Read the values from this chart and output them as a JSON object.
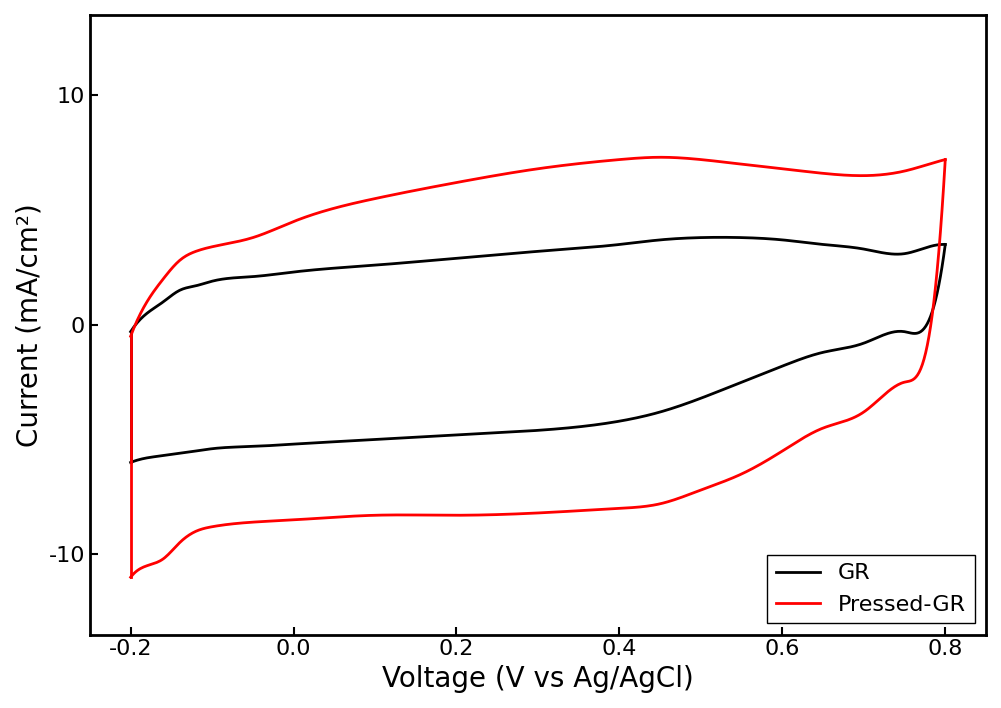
{
  "xlabel": "Voltage (V vs Ag/AgCl)",
  "ylabel": "Current (mA/cm²)",
  "xlim": [
    -0.25,
    0.85
  ],
  "ylim": [
    -13.5,
    13.5
  ],
  "xticks": [
    -0.2,
    0.0,
    0.2,
    0.4,
    0.6,
    0.8
  ],
  "yticks": [
    -10,
    0,
    10
  ],
  "legend_labels": [
    "GR",
    "Pressed-GR"
  ],
  "legend_colors": [
    "black",
    "red"
  ],
  "gr_upper_x": [
    -0.2,
    -0.18,
    -0.16,
    -0.14,
    -0.12,
    -0.1,
    -0.05,
    0.0,
    0.1,
    0.2,
    0.3,
    0.4,
    0.45,
    0.5,
    0.55,
    0.6,
    0.65,
    0.7,
    0.75,
    0.78,
    0.8
  ],
  "gr_upper_y": [
    -0.3,
    0.5,
    1.0,
    1.5,
    1.7,
    1.9,
    2.1,
    2.3,
    2.6,
    2.9,
    3.2,
    3.5,
    3.7,
    3.8,
    3.8,
    3.7,
    3.5,
    3.3,
    3.1,
    3.4,
    3.5
  ],
  "gr_lower_x": [
    -0.2,
    -0.18,
    -0.16,
    -0.14,
    -0.12,
    -0.1,
    -0.05,
    0.0,
    0.1,
    0.2,
    0.3,
    0.4,
    0.45,
    0.5,
    0.55,
    0.6,
    0.65,
    0.7,
    0.75,
    0.78,
    0.8
  ],
  "gr_lower_y": [
    -6.0,
    -5.8,
    -5.7,
    -5.6,
    -5.5,
    -5.4,
    -5.3,
    -5.2,
    -5.0,
    -4.8,
    -4.6,
    -4.2,
    -3.8,
    -3.2,
    -2.5,
    -1.8,
    -1.2,
    -0.8,
    -0.3,
    0.2,
    3.5
  ],
  "pgr_upper_x": [
    -0.2,
    -0.18,
    -0.16,
    -0.14,
    -0.12,
    -0.1,
    -0.05,
    0.0,
    0.1,
    0.2,
    0.3,
    0.4,
    0.45,
    0.5,
    0.55,
    0.6,
    0.65,
    0.7,
    0.75,
    0.78,
    0.8
  ],
  "pgr_upper_y": [
    -0.5,
    1.0,
    2.0,
    2.8,
    3.2,
    3.4,
    3.8,
    4.5,
    5.5,
    6.2,
    6.8,
    7.2,
    7.3,
    7.2,
    7.0,
    6.8,
    6.6,
    6.5,
    6.7,
    7.0,
    7.2
  ],
  "pgr_lower_x": [
    -0.2,
    -0.18,
    -0.16,
    -0.14,
    -0.12,
    -0.1,
    -0.05,
    0.0,
    0.1,
    0.2,
    0.3,
    0.4,
    0.45,
    0.5,
    0.55,
    0.6,
    0.65,
    0.7,
    0.75,
    0.78,
    0.8
  ],
  "pgr_lower_y": [
    -11.0,
    -10.5,
    -10.2,
    -9.5,
    -9.0,
    -8.8,
    -8.6,
    -8.5,
    -8.3,
    -8.3,
    -8.2,
    -8.0,
    -7.8,
    -7.2,
    -6.5,
    -5.5,
    -4.5,
    -3.8,
    -2.5,
    -0.5,
    7.2
  ],
  "linewidth": 2.0,
  "tick_fontsize": 16,
  "label_fontsize": 20,
  "legend_fontsize": 16
}
